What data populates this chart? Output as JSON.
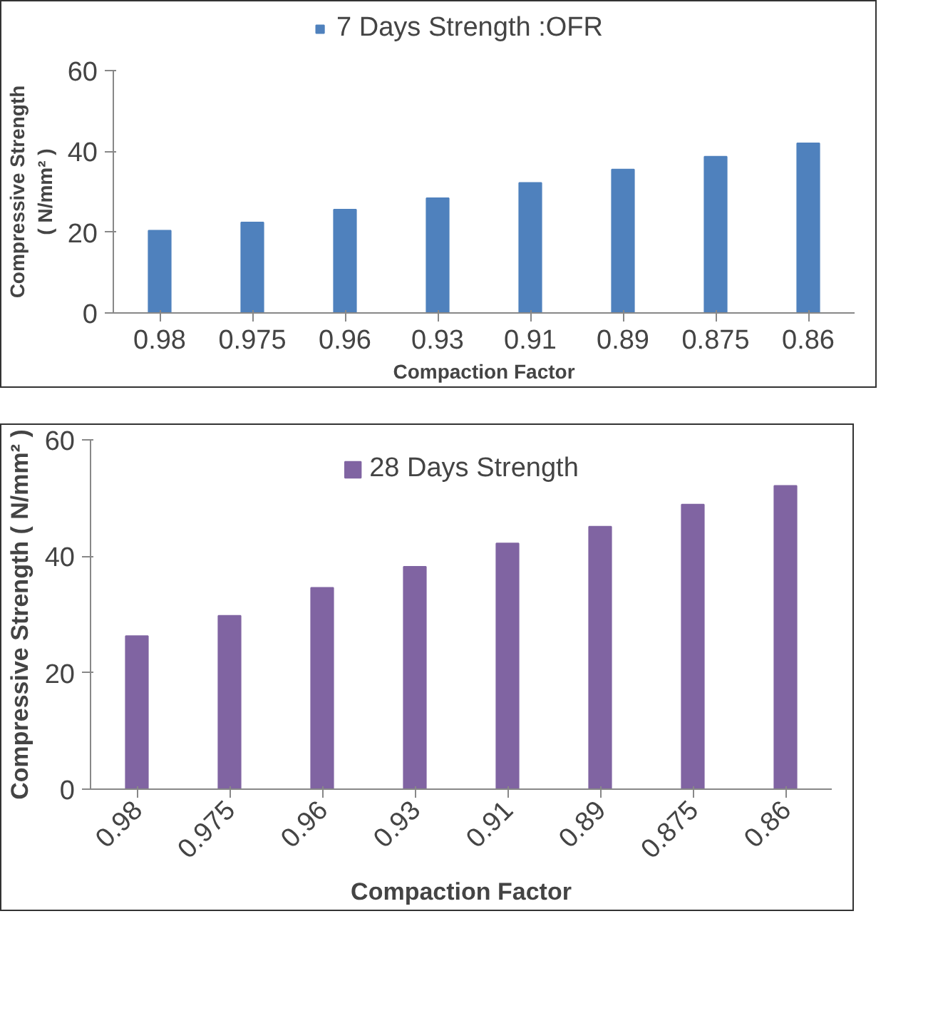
{
  "chart_data": [
    {
      "type": "bar",
      "categories": [
        "0.98",
        "0.975",
        "0.96",
        "0.93",
        "0.91",
        "0.89",
        "0.875",
        "0.86"
      ],
      "xlabel": "Compaction Factor",
      "ylabel": "Compressive Strength ( N/mm² )",
      "ylim": [
        0,
        60
      ],
      "yticks": [
        0,
        20,
        40,
        60
      ],
      "grid": false,
      "legend": "top",
      "series": [
        {
          "name": "7 Days Strength :OFR",
          "color": "#4f81bd",
          "values": [
            20.4,
            22.4,
            25.6,
            28.4,
            32.2,
            35.5,
            38.7,
            42.0
          ]
        }
      ]
    },
    {
      "type": "bar",
      "categories": [
        "0.98",
        "0.975",
        "0.96",
        "0.93",
        "0.91",
        "0.89",
        "0.875",
        "0.86"
      ],
      "xlabel": "Compaction Factor",
      "ylabel": "Compressive Strength ( N/mm² )",
      "ylim": [
        0,
        60
      ],
      "yticks": [
        0,
        20,
        40,
        60
      ],
      "grid": false,
      "legend": "top center",
      "series": [
        {
          "name": "28 Days Strength",
          "color": "#8064a2",
          "values": [
            26.3,
            29.8,
            34.6,
            38.2,
            42.2,
            45.1,
            48.9,
            52.1
          ]
        }
      ]
    }
  ]
}
